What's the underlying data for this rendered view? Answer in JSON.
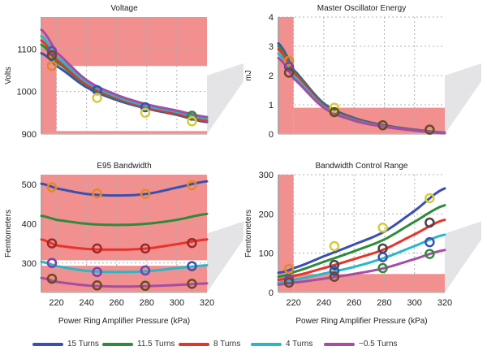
{
  "legend": [
    {
      "label": "15 Turns",
      "color": "#3a4fb0"
    },
    {
      "label": "11.5 Turns",
      "color": "#2e8b3a"
    },
    {
      "label": "8 Turns",
      "color": "#e8332a"
    },
    {
      "label": "4 Turns",
      "color": "#27b8c8"
    },
    {
      "label": "−0.5 Turns",
      "color": "#a64ca6"
    }
  ],
  "chart_data": [
    {
      "type": "line",
      "title": "Voltage",
      "ylabel": "Volts",
      "xlabel": "",
      "xlim": [
        210,
        320
      ],
      "ylim": [
        900,
        1175
      ],
      "xticks": [
        220,
        240,
        260,
        280,
        300,
        320
      ],
      "show_xtick_labels": false,
      "yticks": [
        900,
        1000,
        1100
      ],
      "grid": true,
      "shaded_regions": [
        {
          "x": [
            210,
            320
          ],
          "y": [
            1060,
            1175
          ]
        },
        {
          "x": [
            210,
            220
          ],
          "y": [
            900,
            1060
          ]
        },
        {
          "x": [
            220,
            320
          ],
          "y": [
            900,
            907
          ]
        }
      ],
      "x": [
        210,
        220,
        240,
        260,
        280,
        300,
        320
      ],
      "series": [
        {
          "name": "15 Turns",
          "values": [
            1090,
            1060,
            1010,
            980,
            960,
            945,
            928
          ]
        },
        {
          "name": "11.5 Turns",
          "values": [
            1110,
            1070,
            1015,
            983,
            962,
            947,
            932
          ]
        },
        {
          "name": "8 Turns",
          "values": [
            1120,
            1075,
            1017,
            985,
            962,
            948,
            930
          ]
        },
        {
          "name": "4 Turns",
          "values": [
            1130,
            1082,
            1022,
            988,
            966,
            952,
            936
          ]
        },
        {
          "name": "−0.5 Turns",
          "values": [
            1145,
            1092,
            1027,
            992,
            970,
            955,
            940
          ]
        }
      ],
      "markers": [
        {
          "x": 217,
          "y": 1095,
          "color": "#7a3fb0"
        },
        {
          "x": 217,
          "y": 1085,
          "color": "#6b4a1e"
        },
        {
          "x": 217,
          "y": 1060,
          "color": "#e08a2a"
        },
        {
          "x": 247,
          "y": 1003,
          "color": "#3a4fb0"
        },
        {
          "x": 247,
          "y": 985,
          "color": "#d4cc3a"
        },
        {
          "x": 279,
          "y": 963,
          "color": "#3a4fb0"
        },
        {
          "x": 279,
          "y": 950,
          "color": "#d4cc3a"
        },
        {
          "x": 310,
          "y": 943,
          "color": "#2e8b3a"
        },
        {
          "x": 310,
          "y": 930,
          "color": "#d4cc3a"
        }
      ]
    },
    {
      "type": "line",
      "title": "Master Oscillator Energy",
      "ylabel": "mJ",
      "xlabel": "",
      "xlim": [
        210,
        320
      ],
      "ylim": [
        0,
        4
      ],
      "xticks": [
        220,
        240,
        260,
        280,
        300,
        320
      ],
      "show_xtick_labels": false,
      "yticks": [
        0,
        1,
        2,
        3,
        4
      ],
      "grid": true,
      "shaded_regions": [
        {
          "x": [
            210,
            220
          ],
          "y": [
            0,
            4
          ]
        },
        {
          "x": [
            220,
            320
          ],
          "y": [
            0,
            0.9
          ]
        }
      ],
      "x": [
        210,
        220,
        240,
        260,
        280,
        300,
        320
      ],
      "series": [
        {
          "name": "15 Turns",
          "values": [
            3.1,
            2.2,
            1.05,
            0.55,
            0.3,
            0.15,
            0.05
          ]
        },
        {
          "name": "11.5 Turns",
          "values": [
            3.0,
            2.15,
            1.0,
            0.52,
            0.28,
            0.14,
            0.05
          ]
        },
        {
          "name": "8 Turns",
          "values": [
            2.9,
            2.1,
            0.97,
            0.5,
            0.27,
            0.13,
            0.04
          ]
        },
        {
          "name": "4 Turns",
          "values": [
            2.75,
            2.0,
            0.93,
            0.48,
            0.26,
            0.12,
            0.04
          ]
        },
        {
          "name": "−0.5 Turns",
          "values": [
            2.6,
            1.9,
            0.9,
            0.46,
            0.25,
            0.12,
            0.03
          ]
        }
      ],
      "markers": [
        {
          "x": 217,
          "y": 2.5,
          "color": "#e08a2a"
        },
        {
          "x": 217,
          "y": 2.3,
          "color": "#7a3fb0"
        },
        {
          "x": 217,
          "y": 2.1,
          "color": "#6b4a1e"
        },
        {
          "x": 247,
          "y": 0.9,
          "color": "#d4cc3a"
        },
        {
          "x": 247,
          "y": 0.75,
          "color": "#6b4a1e"
        },
        {
          "x": 279,
          "y": 0.3,
          "color": "#6b4a1e"
        },
        {
          "x": 310,
          "y": 0.15,
          "color": "#6b4a1e"
        }
      ]
    },
    {
      "type": "line",
      "title": "E95 Bandwidth",
      "ylabel": "Femtometers",
      "xlabel": "Power Ring Amplifier Pressure (kPa)",
      "xlim": [
        210,
        320
      ],
      "ylim": [
        225,
        525
      ],
      "xticks": [
        220,
        240,
        260,
        280,
        300,
        320
      ],
      "show_xtick_labels": true,
      "yticks": [
        300,
        400,
        500
      ],
      "grid": true,
      "shaded_regions": [
        {
          "x": [
            210,
            320
          ],
          "y": [
            307,
            525
          ]
        },
        {
          "x": [
            210,
            320
          ],
          "y": [
            225,
            293
          ]
        }
      ],
      "x": [
        210,
        220,
        240,
        260,
        280,
        300,
        320
      ],
      "series": [
        {
          "name": "15 Turns",
          "values": [
            502,
            490,
            476,
            472,
            476,
            492,
            508
          ]
        },
        {
          "name": "11.5 Turns",
          "values": [
            420,
            410,
            400,
            397,
            400,
            410,
            425
          ]
        },
        {
          "name": "8 Turns",
          "values": [
            360,
            345,
            336,
            334,
            337,
            348,
            360
          ]
        },
        {
          "name": "4 Turns",
          "values": [
            303,
            292,
            280,
            277,
            279,
            287,
            294
          ]
        },
        {
          "name": "−0.5 Turns",
          "values": [
            262,
            252,
            243,
            240,
            241,
            244,
            248
          ]
        }
      ],
      "markers": [
        {
          "x": 217,
          "y": 493,
          "color": "#e08a2a"
        },
        {
          "x": 247,
          "y": 477,
          "color": "#e08a2a"
        },
        {
          "x": 279,
          "y": 476,
          "color": "#e08a2a"
        },
        {
          "x": 310,
          "y": 498,
          "color": "#e08a2a"
        },
        {
          "x": 217,
          "y": 350,
          "color": "#9a2a2a"
        },
        {
          "x": 247,
          "y": 337,
          "color": "#9a2a2a"
        },
        {
          "x": 279,
          "y": 337,
          "color": "#9a2a2a"
        },
        {
          "x": 310,
          "y": 351,
          "color": "#9a2a2a"
        },
        {
          "x": 217,
          "y": 300,
          "color": "#7a3fb0"
        },
        {
          "x": 247,
          "y": 277,
          "color": "#7a3fb0"
        },
        {
          "x": 279,
          "y": 281,
          "color": "#7a3fb0"
        },
        {
          "x": 310,
          "y": 292,
          "color": "#3a4fb0"
        },
        {
          "x": 217,
          "y": 260,
          "color": "#6b4a1e"
        },
        {
          "x": 247,
          "y": 243,
          "color": "#6b4a1e"
        },
        {
          "x": 279,
          "y": 242,
          "color": "#6b4a1e"
        },
        {
          "x": 310,
          "y": 247,
          "color": "#6b4a1e"
        }
      ]
    },
    {
      "type": "line",
      "title": "Bandwidth Control Range",
      "ylabel": "Femtometers",
      "xlabel": "Power Ring Amplifier Pressure (kPa)",
      "xlim": [
        210,
        320
      ],
      "ylim": [
        0,
        300
      ],
      "xticks": [
        220,
        240,
        260,
        280,
        300,
        320
      ],
      "show_xtick_labels": true,
      "yticks": [
        0,
        100,
        200,
        300
      ],
      "grid": true,
      "shaded_regions": [
        {
          "x": [
            210,
            220
          ],
          "y": [
            0,
            300
          ]
        },
        {
          "x": [
            220,
            320
          ],
          "y": [
            0,
            47
          ]
        }
      ],
      "x": [
        210,
        220,
        240,
        260,
        280,
        300,
        320
      ],
      "series": [
        {
          "name": "15 Turns",
          "values": [
            50,
            62,
            92,
            122,
            155,
            208,
            265
          ]
        },
        {
          "name": "11.5 Turns",
          "values": [
            40,
            52,
            78,
            105,
            135,
            180,
            222
          ]
        },
        {
          "name": "8 Turns",
          "values": [
            32,
            42,
            62,
            85,
            110,
            148,
            185
          ]
        },
        {
          "name": "4 Turns",
          "values": [
            25,
            32,
            48,
            65,
            88,
            118,
            147
          ]
        },
        {
          "name": "−0.5 Turns",
          "values": [
            20,
            25,
            35,
            47,
            62,
            85,
            108
          ]
        }
      ],
      "markers": [
        {
          "x": 217,
          "y": 60,
          "color": "#e08a2a"
        },
        {
          "x": 247,
          "y": 118,
          "color": "#d4cc3a"
        },
        {
          "x": 279,
          "y": 165,
          "color": "#d4cc3a"
        },
        {
          "x": 310,
          "y": 240,
          "color": "#d4cc3a"
        },
        {
          "x": 217,
          "y": 33,
          "color": "#7a3fb0"
        },
        {
          "x": 247,
          "y": 70,
          "color": "#444444"
        },
        {
          "x": 279,
          "y": 112,
          "color": "#444444"
        },
        {
          "x": 310,
          "y": 178,
          "color": "#444444"
        },
        {
          "x": 247,
          "y": 55,
          "color": "#3a4fb0"
        },
        {
          "x": 279,
          "y": 90,
          "color": "#3a4fb0"
        },
        {
          "x": 310,
          "y": 128,
          "color": "#3a4fb0"
        },
        {
          "x": 217,
          "y": 25,
          "color": "#6b4a1e"
        },
        {
          "x": 247,
          "y": 40,
          "color": "#6b4a1e"
        },
        {
          "x": 279,
          "y": 62,
          "color": "#2e8b3a"
        },
        {
          "x": 310,
          "y": 98,
          "color": "#2e8b3a"
        }
      ]
    }
  ],
  "colors": {
    "shade": "#f29090",
    "grid": "#b0b0b0"
  }
}
